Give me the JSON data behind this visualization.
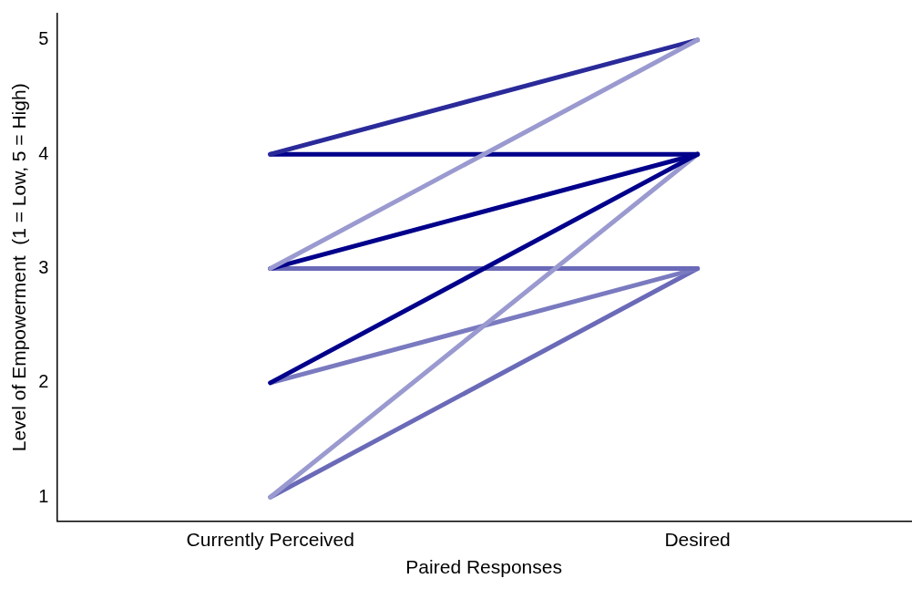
{
  "chart_data": {
    "type": "line",
    "xlabel": "Paired Responses",
    "ylabel": "Level of Empowerment  (1 = Low, 5 = High)",
    "categories": [
      "Currently Perceived",
      "Desired"
    ],
    "series": [
      {
        "color": "#9a9ad0",
        "values": [
          3,
          5
        ]
      },
      {
        "color": "#2a2a9a",
        "values": [
          4,
          5
        ]
      },
      {
        "color": "#00008b",
        "values": [
          4,
          4
        ]
      },
      {
        "color": "#00008b",
        "values": [
          3,
          4
        ]
      },
      {
        "color": "#00008b",
        "values": [
          2,
          4
        ]
      },
      {
        "color": "#9a9ad0",
        "values": [
          1,
          4
        ]
      },
      {
        "color": "#6a6ab8",
        "values": [
          3,
          3
        ]
      },
      {
        "color": "#7a7ac0",
        "values": [
          2,
          3
        ]
      },
      {
        "color": "#6a6ab8",
        "values": [
          1,
          3
        ]
      }
    ],
    "ylim": [
      0.79,
      5.23
    ],
    "yticks": [
      1,
      2,
      3,
      4,
      5
    ],
    "grid": false,
    "legend": false,
    "marker": "none",
    "line_style": "solid"
  }
}
